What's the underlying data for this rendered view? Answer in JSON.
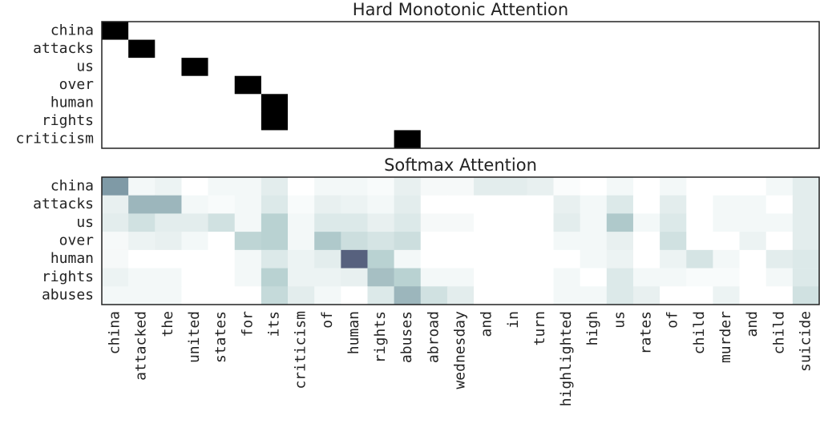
{
  "chart_data": [
    {
      "type": "heatmap",
      "title": "Hard Monotonic Attention",
      "y_categories": [
        "china",
        "attacks",
        "us",
        "over",
        "human",
        "rights",
        "criticism"
      ],
      "colorscale": [
        [
          0,
          "#ffffff"
        ],
        [
          1,
          "#000000"
        ]
      ],
      "values": [
        [
          1,
          0,
          0,
          0,
          0,
          0,
          0,
          0,
          0,
          0,
          0,
          0,
          0,
          0,
          0,
          0,
          0,
          0,
          0,
          0,
          0,
          0,
          0,
          0,
          0,
          0,
          0
        ],
        [
          0,
          1,
          0,
          0,
          0,
          0,
          0,
          0,
          0,
          0,
          0,
          0,
          0,
          0,
          0,
          0,
          0,
          0,
          0,
          0,
          0,
          0,
          0,
          0,
          0,
          0,
          0
        ],
        [
          0,
          0,
          0,
          1,
          0,
          0,
          0,
          0,
          0,
          0,
          0,
          0,
          0,
          0,
          0,
          0,
          0,
          0,
          0,
          0,
          0,
          0,
          0,
          0,
          0,
          0,
          0
        ],
        [
          0,
          0,
          0,
          0,
          0,
          1,
          0,
          0,
          0,
          0,
          0,
          0,
          0,
          0,
          0,
          0,
          0,
          0,
          0,
          0,
          0,
          0,
          0,
          0,
          0,
          0,
          0
        ],
        [
          0,
          0,
          0,
          0,
          0,
          0,
          1,
          0,
          0,
          0,
          0,
          0,
          0,
          0,
          0,
          0,
          0,
          0,
          0,
          0,
          0,
          0,
          0,
          0,
          0,
          0,
          0
        ],
        [
          0,
          0,
          0,
          0,
          0,
          0,
          1,
          0,
          0,
          0,
          0,
          0,
          0,
          0,
          0,
          0,
          0,
          0,
          0,
          0,
          0,
          0,
          0,
          0,
          0,
          0,
          0
        ],
        [
          0,
          0,
          0,
          0,
          0,
          0,
          0,
          0,
          0,
          0,
          0,
          1,
          0,
          0,
          0,
          0,
          0,
          0,
          0,
          0,
          0,
          0,
          0,
          0,
          0,
          0,
          0
        ]
      ]
    },
    {
      "type": "heatmap",
      "title": "Softmax Attention",
      "categories": [
        "china",
        "attacked",
        "the",
        "united",
        "states",
        "for",
        "its",
        "criticism",
        "of",
        "human",
        "rights",
        "abuses",
        "abroad",
        "wednesday",
        "and",
        "in",
        "turn",
        "highlighted",
        "high",
        "us",
        "rates",
        "of",
        "child",
        "murder",
        "and",
        "child",
        "suicide"
      ],
      "y_categories": [
        "china",
        "attacks",
        "us",
        "over",
        "human",
        "rights",
        "abuses"
      ],
      "colorscale": [
        [
          0,
          "#ffffff"
        ],
        [
          0.3,
          "#b9d2d2"
        ],
        [
          0.6,
          "#7f9aa6"
        ],
        [
          1,
          "#3f3f66"
        ]
      ],
      "values": [
        [
          0.6,
          0.05,
          0.08,
          0,
          0.05,
          0.05,
          0.12,
          0,
          0.05,
          0.05,
          0.03,
          0.1,
          0.04,
          0.04,
          0.12,
          0.12,
          0.1,
          0.02,
          0,
          0.05,
          0,
          0.05,
          0,
          0,
          0,
          0.05,
          0.12
        ],
        [
          0.1,
          0.45,
          0.45,
          0.05,
          0.03,
          0.05,
          0.15,
          0.03,
          0.1,
          0.08,
          0.05,
          0.12,
          0,
          0,
          0,
          0,
          0,
          0.1,
          0.05,
          0.15,
          0,
          0.12,
          0,
          0.05,
          0.05,
          0,
          0.12
        ],
        [
          0.12,
          0.2,
          0.12,
          0.12,
          0.2,
          0.05,
          0.3,
          0.05,
          0.15,
          0.15,
          0.1,
          0.15,
          0.04,
          0.04,
          0,
          0,
          0,
          0.12,
          0.05,
          0.35,
          0.05,
          0.15,
          0,
          0.05,
          0.05,
          0.05,
          0.12
        ],
        [
          0.04,
          0.08,
          0.1,
          0.05,
          0,
          0.28,
          0.3,
          0.05,
          0.35,
          0.22,
          0.18,
          0.22,
          0,
          0,
          0,
          0,
          0,
          0.05,
          0.05,
          0.1,
          0,
          0.2,
          0,
          0,
          0.08,
          0,
          0.12
        ],
        [
          0.04,
          0,
          0,
          0,
          0,
          0.05,
          0.15,
          0.08,
          0.12,
          0.85,
          0.3,
          0.05,
          0,
          0,
          0,
          0,
          0,
          0,
          0.05,
          0.08,
          0,
          0.08,
          0.18,
          0.05,
          0,
          0.12,
          0.15
        ],
        [
          0.08,
          0.05,
          0.05,
          0,
          0,
          0.05,
          0.3,
          0.08,
          0.08,
          0.1,
          0.4,
          0.3,
          0.05,
          0.05,
          0,
          0,
          0,
          0.05,
          0,
          0.15,
          0.05,
          0.05,
          0.03,
          0.03,
          0,
          0.05,
          0.15
        ],
        [
          0.05,
          0.05,
          0.05,
          0,
          0,
          0,
          0.25,
          0.12,
          0.05,
          0,
          0.15,
          0.45,
          0.2,
          0.12,
          0,
          0,
          0,
          0.05,
          0.05,
          0.15,
          0.1,
          0,
          0,
          0.08,
          0,
          0,
          0.2
        ]
      ]
    }
  ]
}
